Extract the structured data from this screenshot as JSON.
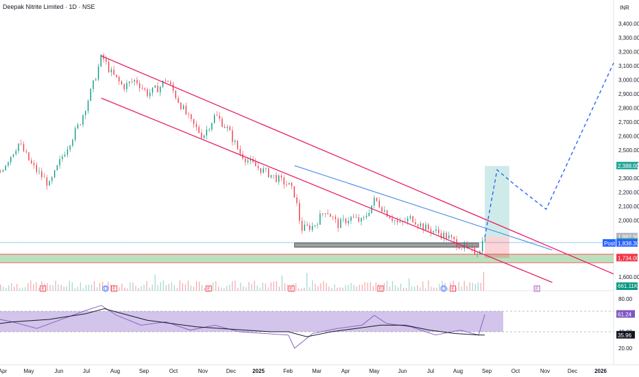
{
  "header": {
    "title": "Deepak Nitrite Limited · 1D · NSE"
  },
  "currency": "INR",
  "chart_data": {
    "type": "candlestick",
    "price_axis": {
      "range": [
        1560,
        3460
      ],
      "ticks": [
        3400,
        3300,
        3200,
        3100,
        3000,
        2900,
        2800,
        2700,
        2600,
        2500,
        2400,
        2300,
        2200,
        2100,
        2000,
        1600
      ],
      "tick_labels": [
        "3,400.00",
        "3,300.00",
        "3,200.00",
        "3,100.00",
        "3,000.00",
        "2,900.00",
        "2,800.00",
        "2,700.00",
        "2,600.00",
        "2,500.00",
        "2,400.00",
        "2,300.00",
        "2,200.00",
        "2,100.00",
        "2,000.00",
        "1,600.00"
      ]
    },
    "time_axis": {
      "labels": [
        "Apr",
        "May",
        "Jun",
        "Jul",
        "Aug",
        "Sep",
        "Oct",
        "Nov",
        "Dec",
        "2025",
        "Feb",
        "Mar",
        "Apr",
        "May",
        "Jun",
        "Jul",
        "Aug",
        "Sep",
        "Oct",
        "Nov",
        "Dec",
        "2026"
      ]
    },
    "price_path": [
      [
        -10,
        2100
      ],
      [
        -4,
        2200
      ],
      [
        0,
        2350
      ],
      [
        3,
        2550
      ],
      [
        5,
        2400
      ],
      [
        8,
        2250
      ],
      [
        10,
        2450
      ],
      [
        13,
        2700
      ],
      [
        15,
        2950
      ],
      [
        16.5,
        3170
      ],
      [
        18,
        3050
      ],
      [
        20,
        2950
      ],
      [
        22,
        3000
      ],
      [
        24,
        2900
      ],
      [
        26,
        2950
      ],
      [
        27,
        3010
      ],
      [
        29,
        2850
      ],
      [
        31,
        2700
      ],
      [
        33,
        2600
      ],
      [
        35,
        2750
      ],
      [
        37,
        2650
      ],
      [
        39,
        2480
      ],
      [
        41,
        2400
      ],
      [
        43,
        2350
      ],
      [
        45,
        2300
      ],
      [
        47,
        2250
      ],
      [
        48,
        2180
      ],
      [
        49,
        1940
      ],
      [
        51,
        1960
      ],
      [
        53,
        2080
      ],
      [
        55,
        1970
      ],
      [
        57,
        2020
      ],
      [
        59,
        1990
      ],
      [
        61,
        2150
      ],
      [
        63,
        2050
      ],
      [
        65,
        1970
      ],
      [
        67,
        2020
      ],
      [
        69,
        1950
      ],
      [
        71,
        1920
      ],
      [
        73,
        1880
      ],
      [
        75,
        1820
      ],
      [
        77,
        1775
      ],
      [
        78,
        1790
      ],
      [
        79,
        1900
      ]
    ],
    "channel_upper": {
      "from": [
        16.5,
        3170
      ],
      "to": [
        100,
        1620
      ]
    },
    "channel_lower": {
      "from": [
        16.5,
        2870
      ],
      "to": [
        90,
        1560
      ]
    },
    "trendline": {
      "from": [
        48,
        2390
      ],
      "to": [
        90,
        1790
      ]
    },
    "projection": [
      [
        79,
        1880
      ],
      [
        81,
        2360
      ],
      [
        84,
        2250
      ],
      [
        89,
        2080
      ],
      [
        100,
        3120
      ]
    ],
    "support_zone": {
      "low": 1810,
      "high": 1840,
      "from": 48,
      "to": 78
    },
    "green_zone": {
      "low": 1700,
      "high": 1760
    },
    "position": {
      "entry": 1882.9,
      "target": 2388.0,
      "stop": 1734.0,
      "from": 79,
      "to": 83
    },
    "price_labels": [
      {
        "text": "2,388.00",
        "value": 2388,
        "color": "#26a69a"
      },
      {
        "text": "1,882.90",
        "value": 1882.9,
        "color": "#b2b5be"
      },
      {
        "text": "1,844.90",
        "value": 1844.9,
        "color": "#26a69a"
      },
      {
        "text": "1,838.30",
        "value": 1838.3,
        "color": "#2962ff"
      },
      {
        "text": "1,734.00",
        "value": 1734,
        "color": "#f23645"
      }
    ],
    "post_label": "Post",
    "volume_label": "661.11K",
    "events": [
      {
        "x": 7,
        "label": "E"
      },
      {
        "x": 17.2,
        "label": "D"
      },
      {
        "x": 18.6,
        "label": "E"
      },
      {
        "x": 34,
        "label": "E"
      },
      {
        "x": 47.5,
        "label": "E"
      },
      {
        "x": 62,
        "label": "E"
      },
      {
        "x": 72.3,
        "label": "D"
      },
      {
        "x": 73.8,
        "label": "E"
      },
      {
        "x": 87.5,
        "label": "E"
      }
    ],
    "rsi": {
      "range": [
        10,
        85
      ],
      "ticks": [
        80,
        60,
        40,
        20
      ],
      "tick_labels": [
        "80.00",
        "60.00",
        "40.00",
        "20.00"
      ],
      "band": [
        40,
        60
      ],
      "current": "61.24",
      "ma": "35.96",
      "path": [
        [
          -10,
          45
        ],
        [
          -6,
          48
        ],
        [
          -2,
          58
        ],
        [
          2,
          52
        ],
        [
          6,
          44
        ],
        [
          10,
          55
        ],
        [
          14,
          66
        ],
        [
          16.5,
          72
        ],
        [
          19,
          60
        ],
        [
          23,
          48
        ],
        [
          27,
          52
        ],
        [
          31,
          42
        ],
        [
          35,
          48
        ],
        [
          39,
          40
        ],
        [
          43,
          38
        ],
        [
          47,
          36
        ],
        [
          48,
          20
        ],
        [
          51,
          38
        ],
        [
          55,
          44
        ],
        [
          59,
          48
        ],
        [
          61,
          60
        ],
        [
          63,
          50
        ],
        [
          67,
          46
        ],
        [
          71,
          36
        ],
        [
          75,
          42
        ],
        [
          78,
          36
        ],
        [
          79,
          61
        ]
      ],
      "ma_path": [
        [
          -10,
          44
        ],
        [
          -4,
          48
        ],
        [
          2,
          52
        ],
        [
          8,
          55
        ],
        [
          14,
          62
        ],
        [
          17,
          68
        ],
        [
          20,
          62
        ],
        [
          24,
          54
        ],
        [
          28,
          50
        ],
        [
          32,
          46
        ],
        [
          36,
          44
        ],
        [
          40,
          42
        ],
        [
          44,
          40
        ],
        [
          47,
          40
        ],
        [
          50,
          34
        ],
        [
          54,
          40
        ],
        [
          58,
          44
        ],
        [
          62,
          48
        ],
        [
          66,
          48
        ],
        [
          70,
          42
        ],
        [
          74,
          38
        ],
        [
          78,
          36
        ],
        [
          79,
          36
        ]
      ]
    }
  }
}
